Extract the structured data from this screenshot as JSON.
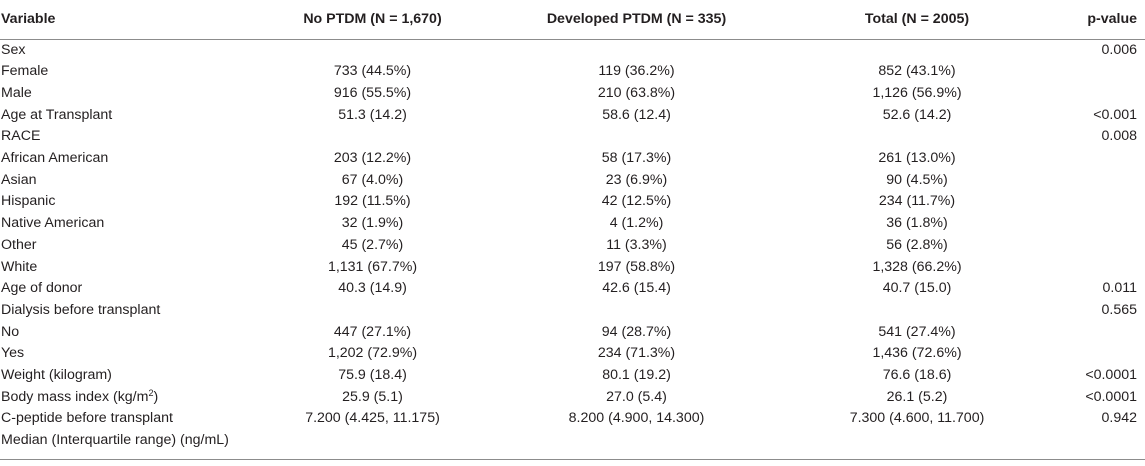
{
  "table": {
    "headers": [
      "Variable",
      "No PTDM (N = 1,670)",
      "Developed PTDM (N = 335)",
      "Total (N = 2005)",
      "p-value"
    ],
    "rows": [
      [
        "Sex",
        "",
        "",
        "",
        "0.006"
      ],
      [
        "Female",
        "733 (44.5%)",
        "119 (36.2%)",
        "852 (43.1%)",
        ""
      ],
      [
        "Male",
        "916 (55.5%)",
        "210 (63.8%)",
        "1,126 (56.9%)",
        ""
      ],
      [
        "Age at Transplant",
        "51.3 (14.2)",
        "58.6 (12.4)",
        "52.6 (14.2)",
        "<0.001"
      ],
      [
        "RACE",
        "",
        "",
        "",
        "0.008"
      ],
      [
        "African American",
        "203 (12.2%)",
        "58 (17.3%)",
        "261 (13.0%)",
        ""
      ],
      [
        "Asian",
        "67 (4.0%)",
        "23 (6.9%)",
        "90 (4.5%)",
        ""
      ],
      [
        "Hispanic",
        "192 (11.5%)",
        "42 (12.5%)",
        "234 (11.7%)",
        ""
      ],
      [
        "Native American",
        "32 (1.9%)",
        "4 (1.2%)",
        "36 (1.8%)",
        ""
      ],
      [
        "Other",
        "45 (2.7%)",
        "11 (3.3%)",
        "56 (2.8%)",
        ""
      ],
      [
        "White",
        "1,131 (67.7%)",
        "197 (58.8%)",
        "1,328 (66.2%)",
        ""
      ],
      [
        "Age of donor",
        "40.3 (14.9)",
        "42.6 (15.4)",
        "40.7 (15.0)",
        "0.011"
      ],
      [
        "Dialysis before transplant",
        "",
        "",
        "",
        "0.565"
      ],
      [
        "No",
        "447 (27.1%)",
        "94 (28.7%)",
        "541 (27.4%)",
        ""
      ],
      [
        "Yes",
        "1,202 (72.9%)",
        "234 (71.3%)",
        "1,436 (72.6%)",
        ""
      ],
      [
        "Weight (kilogram)",
        "75.9 (18.4)",
        "80.1 (19.2)",
        "76.6 (18.6)",
        "<0.0001"
      ],
      [
        "Body mass index (kg/m",
        "25.9 (5.1)",
        "27.0 (5.4)",
        "26.1 (5.2)",
        "<0.0001"
      ],
      [
        "C-peptide before transplant",
        "7.200 (4.425, 11.175)",
        "8.200 (4.900, 14.300)",
        "7.300 (4.600, 11.700)",
        "0.942"
      ],
      [
        "Median (Interquartile range) (ng/mL)",
        "",
        "",
        "",
        ""
      ]
    ],
    "bmi_superscript": "2",
    "bmi_suffix": ")"
  }
}
